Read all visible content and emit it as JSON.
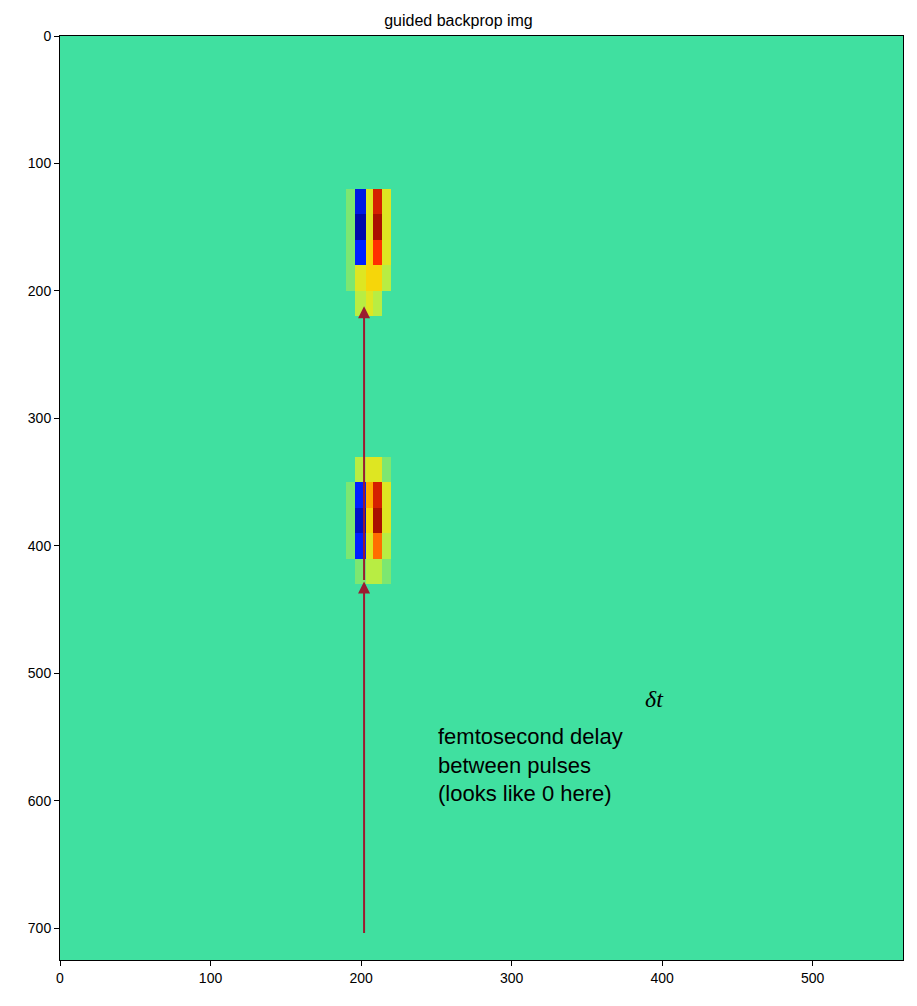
{
  "chart_data": {
    "type": "heatmap",
    "title": "guided backprop img",
    "x_edges": [
      0,
      190,
      196,
      203,
      208,
      214,
      220,
      560
    ],
    "y_edges": [
      0,
      120,
      140,
      160,
      180,
      200,
      220,
      330,
      350,
      370,
      390,
      410,
      430,
      725
    ],
    "cells": [
      [
        0,
        0,
        0,
        0,
        0,
        0,
        0
      ],
      [
        0,
        0.1,
        -0.7,
        0.3,
        0.8,
        0.3,
        0
      ],
      [
        0,
        0.1,
        -0.9,
        0.3,
        0.9,
        0.3,
        0
      ],
      [
        0,
        0.1,
        -0.6,
        0.4,
        0.7,
        0.3,
        0
      ],
      [
        0,
        0.1,
        0.3,
        0.4,
        0.4,
        0.2,
        0
      ],
      [
        0,
        0,
        0.2,
        0.3,
        0.2,
        0,
        0
      ],
      [
        0,
        0,
        0,
        0,
        0,
        0,
        0
      ],
      [
        0,
        0,
        0.2,
        0.3,
        0.3,
        0.1,
        0
      ],
      [
        0,
        0.1,
        -0.6,
        0.5,
        0.8,
        0.3,
        0
      ],
      [
        0,
        0.1,
        -0.8,
        0.4,
        0.9,
        0.3,
        0
      ],
      [
        0,
        0.1,
        -0.6,
        0.3,
        0.6,
        0.2,
        0
      ],
      [
        0,
        0,
        0.1,
        0.2,
        0.2,
        0.1,
        0
      ],
      [
        0,
        0,
        0,
        0,
        0,
        0,
        0
      ]
    ],
    "zlim": [
      -1,
      1
    ],
    "xlim": [
      0,
      560
    ],
    "xticks": [
      0,
      100,
      200,
      300,
      400,
      500
    ],
    "ylim": [
      725,
      0
    ],
    "yticks": [
      0,
      100,
      200,
      300,
      400,
      500,
      600,
      700
    ],
    "grid": false,
    "annotations": [
      {
        "text": "δt",
        "x": 395,
        "y": 520
      },
      {
        "text": [
          "femtosecond delay",
          "between pulses",
          "(looks like 0 here)"
        ],
        "x": 250,
        "y": 538
      }
    ]
  }
}
